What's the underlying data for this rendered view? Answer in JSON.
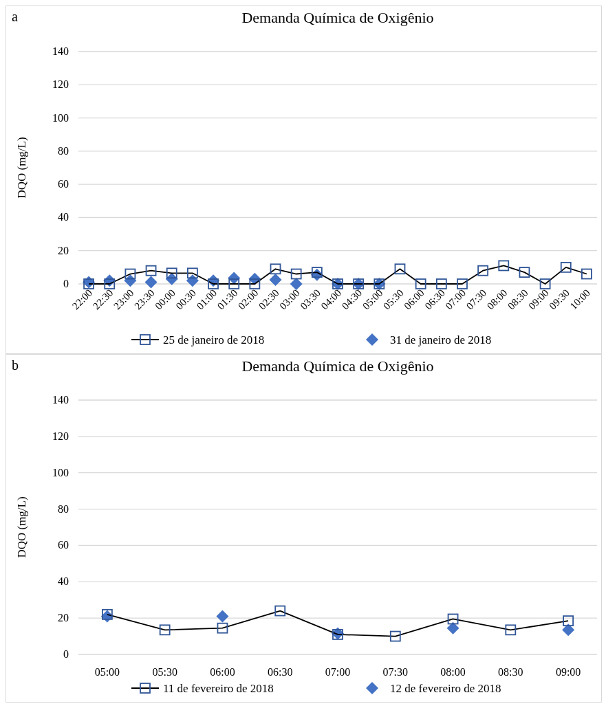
{
  "chart_data": [
    {
      "type": "line",
      "title": "Demanda Química de Oxigênio",
      "ylabel": "DQO (mg/L)",
      "annotations": [
        "a"
      ],
      "categories": [
        "22:00",
        "22:30",
        "23:00",
        "23:30",
        "00:00",
        "00:30",
        "01:00",
        "01:30",
        "02:00",
        "02:30",
        "03:00",
        "03:30",
        "04:00",
        "04:30",
        "05:00",
        "05:30",
        "06:00",
        "06:30",
        "07:00",
        "07:30",
        "08:00",
        "08:30",
        "09:00",
        "09:30",
        "10:00"
      ],
      "series": [
        {
          "name": "25 de janeiro de 2018",
          "type": "line",
          "marker": "square",
          "color": "#2f5597",
          "values": [
            0,
            0,
            6,
            8,
            6.5,
            6.5,
            0,
            0,
            0,
            9,
            6,
            7,
            0,
            0,
            0,
            9,
            0,
            0,
            0,
            8,
            11,
            7,
            0,
            10,
            6
          ]
        },
        {
          "name": "31 de janeiro de 2018",
          "type": "scatter",
          "marker": "diamond",
          "color": "#4472c4",
          "values": [
            1,
            2,
            2,
            1,
            3,
            2,
            2,
            3.5,
            3,
            2.5,
            0,
            5.5,
            0,
            0,
            0,
            null,
            null,
            null,
            null,
            null,
            null,
            null,
            null,
            null,
            null
          ]
        }
      ],
      "ylim": [
        0,
        140
      ],
      "yticks": [
        0,
        20,
        40,
        60,
        80,
        100,
        120,
        140
      ],
      "grid": "y",
      "legend": "bottom"
    },
    {
      "type": "line",
      "title": "Demanda Química de Oxigênio",
      "ylabel": "DQO (mg/L)",
      "annotations": [
        "b"
      ],
      "categories": [
        "05:00",
        "05:30",
        "06:00",
        "06:30",
        "07:00",
        "07:30",
        "08:00",
        "08:30",
        "09:00"
      ],
      "series": [
        {
          "name": "11 de fevereiro de 2018",
          "type": "line",
          "marker": "square",
          "color": "#2f5597",
          "values": [
            22,
            13.5,
            14.5,
            24,
            11,
            10,
            19.5,
            13.5,
            18.5
          ]
        },
        {
          "name": "12 de fevereiro de 2018",
          "type": "scatter",
          "marker": "diamond",
          "color": "#4472c4",
          "values": [
            21,
            null,
            21,
            null,
            11.5,
            null,
            14.5,
            null,
            13.5
          ]
        }
      ],
      "ylim": [
        0,
        140
      ],
      "yticks": [
        0,
        20,
        40,
        60,
        80,
        100,
        120,
        140
      ],
      "grid": "y",
      "legend": "bottom"
    }
  ]
}
